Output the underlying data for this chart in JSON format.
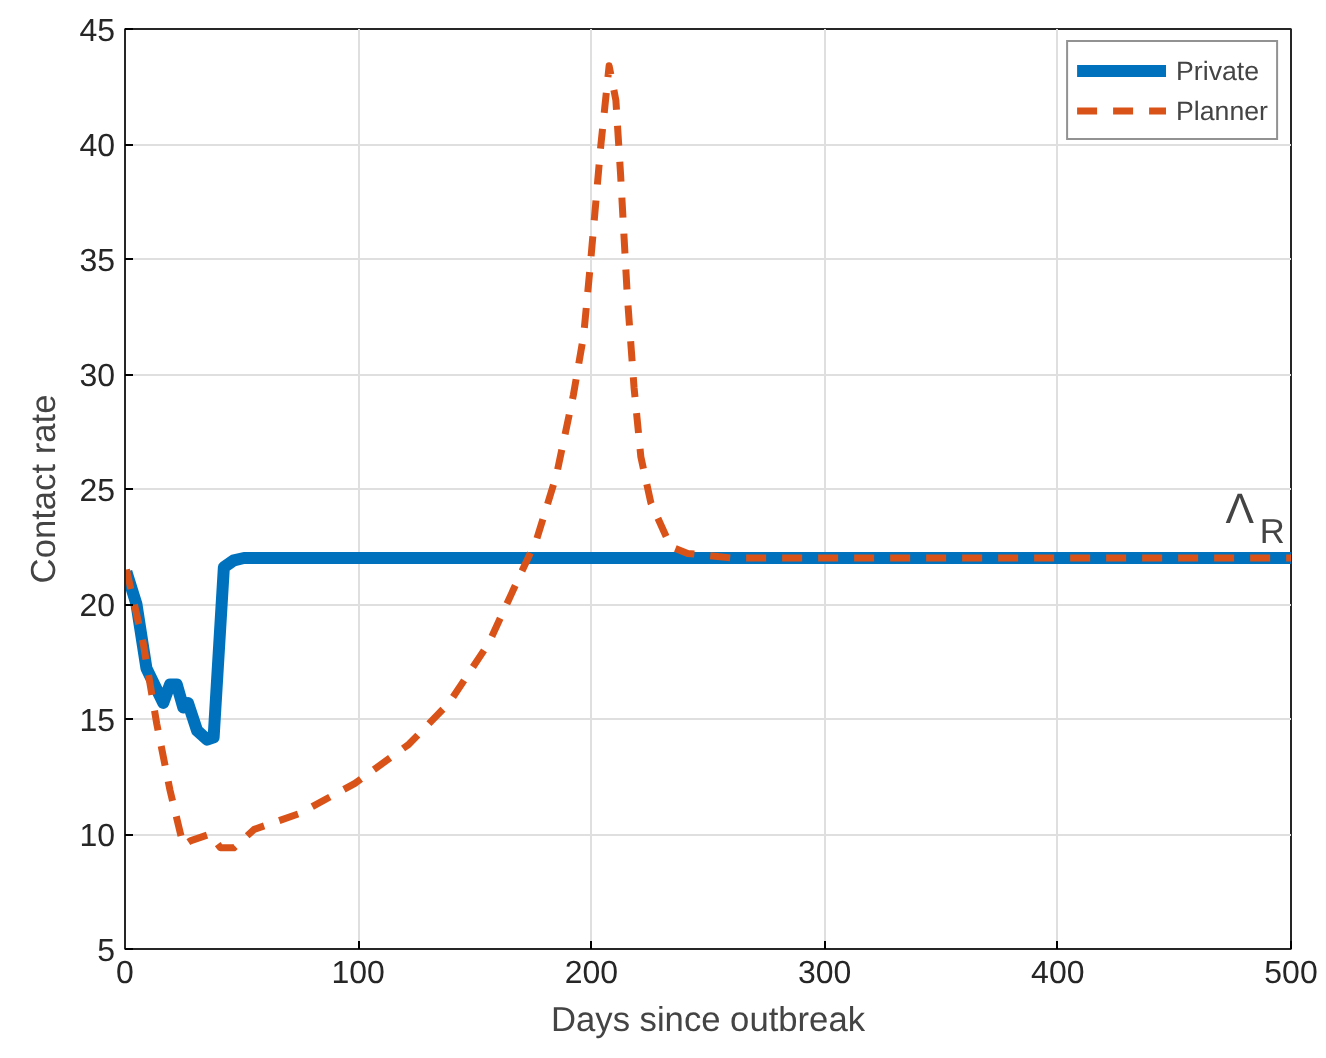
{
  "chart_data": {
    "type": "line",
    "xlabel": "Days since outbreak",
    "ylabel": "Contact rate",
    "xlim": [
      0,
      500
    ],
    "ylim": [
      5,
      45
    ],
    "xticks": [
      0,
      100,
      200,
      300,
      400,
      500
    ],
    "yticks": [
      5,
      10,
      15,
      20,
      25,
      30,
      35,
      40,
      45
    ],
    "grid": true,
    "legend": "top right",
    "annotations": [
      {
        "text": "Λ$_{R}$",
        "x": 490,
        "y": 22.05
      }
    ],
    "series": [
      {
        "name": "Private",
        "color": "#0072bd",
        "line_style": "solid",
        "x": [
          0.6,
          4.9,
          9.2,
          16.4,
          19.3,
          22.2,
          25,
          27,
          30.9,
          35.2,
          38,
          42.4,
          46.7,
          51,
          100,
          200,
          300,
          400,
          500
        ],
        "values": [
          21.4,
          20.0,
          17.2,
          15.7,
          16.5,
          16.5,
          15.5,
          15.7,
          14.5,
          14.1,
          14.2,
          21.6,
          21.9,
          22,
          22,
          22,
          22,
          22,
          22
        ]
      },
      {
        "name": "Planner",
        "color": "#d95319",
        "line_style": "dashed",
        "x": [
          0.6,
          7.8,
          13.6,
          19.3,
          25,
          28,
          36.6,
          40.9,
          46.7,
          55.4,
          75,
          98.6,
          121.7,
          139,
          156,
          167.8,
          176.5,
          185,
          192.3,
          196.7,
          199.5,
          204,
          207.6,
          210.5,
          212.5,
          215.4,
          218.3,
          221.2,
          225.5,
          234,
          241.3,
          260,
          300,
          400,
          500
        ],
        "values": [
          21.5,
          18.3,
          14.8,
          11.9,
          9.5,
          9.7,
          10.0,
          9.4,
          9.4,
          10.2,
          10.9,
          12.2,
          13.9,
          15.7,
          18.3,
          20.9,
          22.8,
          25.6,
          29.1,
          31.7,
          34.7,
          39.9,
          43.4,
          41.9,
          38.7,
          33.4,
          29.4,
          26.4,
          24.4,
          22.5,
          22.2,
          22,
          22,
          22,
          22
        ]
      }
    ]
  }
}
